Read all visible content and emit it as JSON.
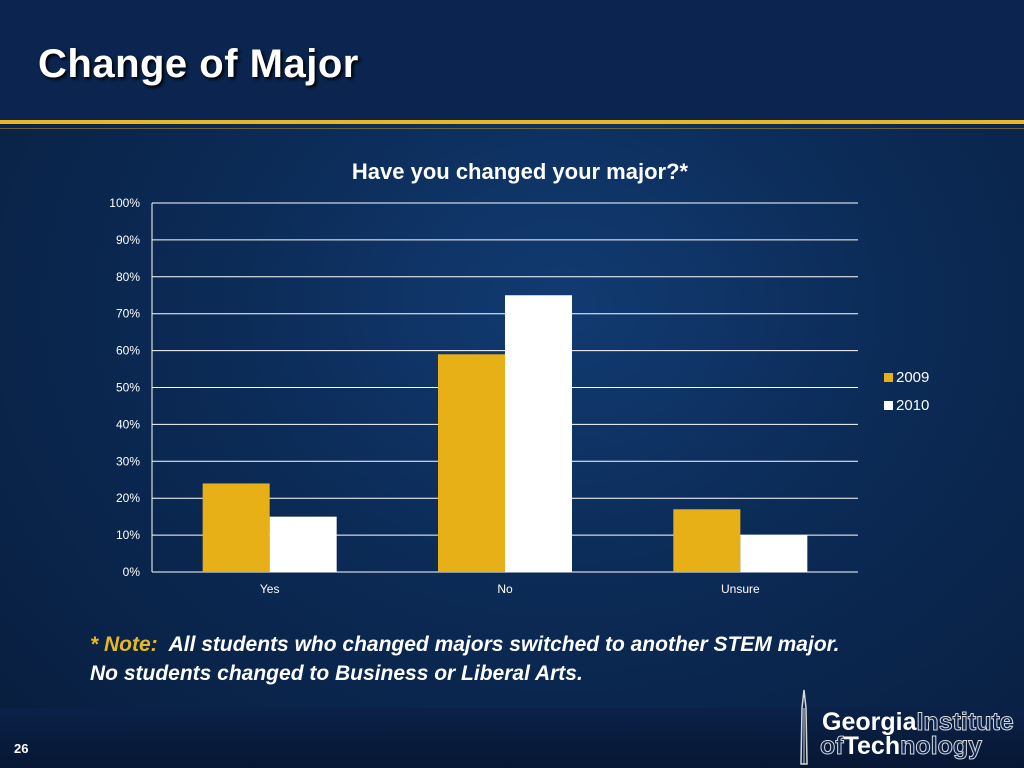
{
  "slide": {
    "title": "Change of Major",
    "page_number": "26",
    "note_prefix": "* Note:",
    "note_line1": "All students who changed majors switched to another STEM major.",
    "note_line2": "No students changed to Business or Liberal Arts."
  },
  "logo": {
    "line1_solid": "Georgia",
    "line1_outline": "Institute",
    "line2_outline_a": "of",
    "line2_solid": "Tech",
    "line2_outline_b": "nology"
  },
  "colors": {
    "series_2009": "#e8b017",
    "series_2010": "#ffffff",
    "accent_gold": "#e8b722"
  },
  "chart_data": {
    "type": "bar",
    "title": "Have you changed your major?*",
    "categories": [
      "Yes",
      "No",
      "Unsure"
    ],
    "series": [
      {
        "name": "2009",
        "values": [
          24,
          59,
          17
        ]
      },
      {
        "name": "2010",
        "values": [
          15,
          75,
          10
        ]
      }
    ],
    "ylim": [
      0,
      100
    ],
    "yticks": [
      "0%",
      "10%",
      "20%",
      "30%",
      "40%",
      "50%",
      "60%",
      "70%",
      "80%",
      "90%",
      "100%"
    ],
    "grid": true,
    "legend_position": "right"
  }
}
